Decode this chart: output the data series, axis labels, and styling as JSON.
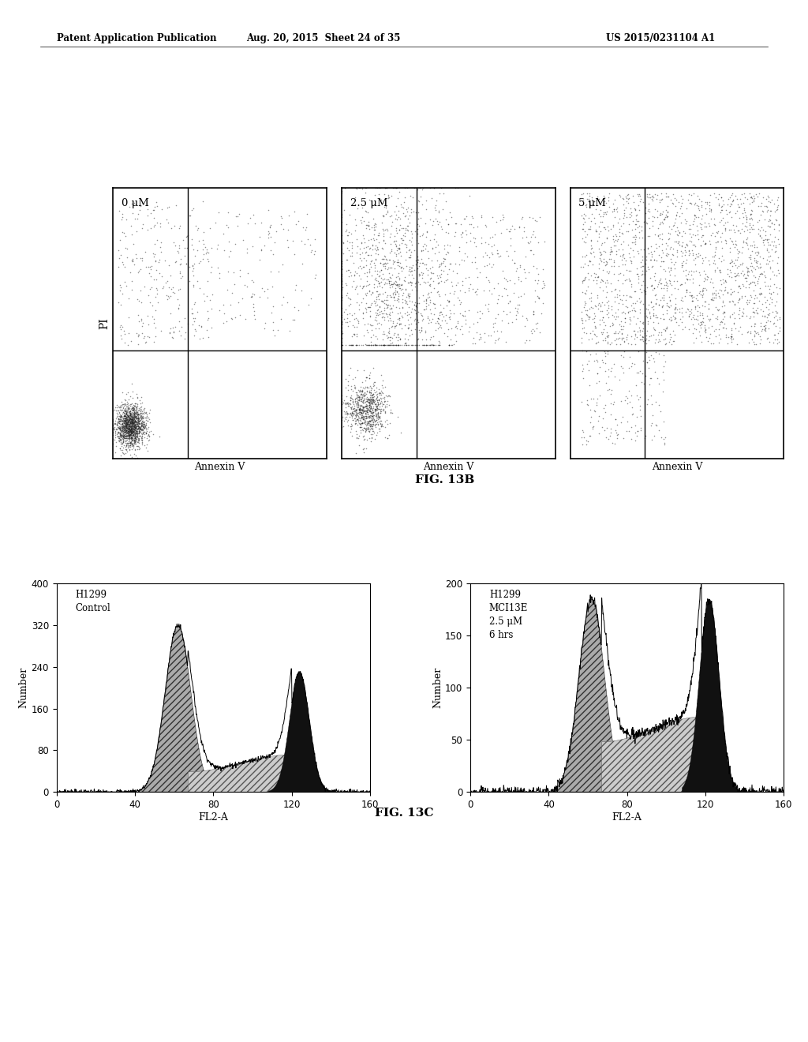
{
  "header_left": "Patent Application Publication",
  "header_mid": "Aug. 20, 2015  Sheet 24 of 35",
  "header_right": "US 2015/0231104 A1",
  "fig13b_title": "FIG. 13B",
  "fig13c_title": "FIG. 13C",
  "scatter_labels": [
    "0 μM",
    "2.5 μM",
    "5 μM"
  ],
  "scatter_xlabel": "Annexin V",
  "scatter_ylabel": "PI",
  "hist1_label": "H1299\nControl",
  "hist2_label": "H1299\nMCI13E\n2.5 μM\n6 hrs",
  "hist_xlabel": "FL2-A",
  "hist_ylabel": "Number",
  "hist1_yticks": [
    0,
    80,
    160,
    240,
    320,
    400
  ],
  "hist1_xticks": [
    0,
    40,
    80,
    120,
    160
  ],
  "hist2_yticks": [
    0,
    50,
    100,
    150,
    200
  ],
  "hist2_xticks": [
    0,
    40,
    80,
    120,
    160
  ],
  "background_color": "#ffffff"
}
